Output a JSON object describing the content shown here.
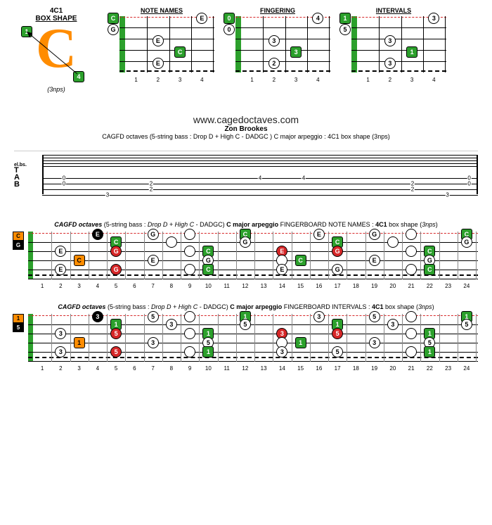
{
  "colors": {
    "green": "#2ca02c",
    "orange": "#ff8c00",
    "red": "#d62728",
    "black": "#000000",
    "white": "#ffffff",
    "grid": "#888888"
  },
  "top": {
    "box_title": "4C1",
    "box_sub": "BOX SHAPE",
    "big_letter": "C",
    "big_letter_color": "#ff8c00",
    "corner_tl": "1",
    "corner_br": "4",
    "nps_label": "(3nps)",
    "mini_charts": {
      "frets": 4,
      "strings": 5,
      "fret_labels": [
        "1",
        "2",
        "3",
        "4"
      ],
      "charts": [
        {
          "title": "NOTE NAMES",
          "open_notes": [
            {
              "string": 0,
              "label": "C",
              "style": "green-sq"
            },
            {
              "string": 1,
              "label": "G",
              "style": "circle"
            }
          ],
          "notes": [
            {
              "fret": 4,
              "string": 0,
              "label": "E",
              "style": "circle"
            },
            {
              "fret": 2,
              "string": 2,
              "label": "E",
              "style": "circle"
            },
            {
              "fret": 3,
              "string": 3,
              "label": "C",
              "style": "green-sq"
            },
            {
              "fret": 2,
              "string": 4,
              "label": "E",
              "style": "circle"
            }
          ]
        },
        {
          "title": "FINGERING",
          "open_notes": [
            {
              "string": 0,
              "label": "0",
              "style": "green-sq"
            },
            {
              "string": 1,
              "label": "0",
              "style": "circle"
            }
          ],
          "notes": [
            {
              "fret": 4,
              "string": 0,
              "label": "4",
              "style": "circle"
            },
            {
              "fret": 2,
              "string": 2,
              "label": "3",
              "style": "circle"
            },
            {
              "fret": 3,
              "string": 3,
              "label": "3",
              "style": "green-sq"
            },
            {
              "fret": 2,
              "string": 4,
              "label": "2",
              "style": "circle"
            }
          ]
        },
        {
          "title": "INTERVALS",
          "open_notes": [
            {
              "string": 0,
              "label": "1",
              "style": "green-sq"
            },
            {
              "string": 1,
              "label": "5",
              "style": "circle"
            }
          ],
          "notes": [
            {
              "fret": 4,
              "string": 0,
              "label": "3",
              "style": "circle"
            },
            {
              "fret": 2,
              "string": 2,
              "label": "3",
              "style": "circle"
            },
            {
              "fret": 3,
              "string": 3,
              "label": "1",
              "style": "green-sq"
            },
            {
              "fret": 2,
              "string": 4,
              "label": "3",
              "style": "circle"
            }
          ]
        }
      ]
    }
  },
  "mid": {
    "url": "www.cagedoctaves.com",
    "author": "Zon Brookes",
    "title": "CAGFD octaves (5-string bass : Drop D + High C - DADGC ) C major arpeggio : 4C1 box shape (3nps)",
    "tab": {
      "top_row": [
        "0",
        "",
        "",
        "",
        "4",
        "4",
        "",
        "",
        "",
        "0"
      ],
      "rows": [
        [
          "0",
          "",
          "2",
          "",
          "",
          "",
          "",
          "2",
          "",
          "0"
        ],
        [
          "",
          "",
          "2",
          "",
          "",
          "",
          "",
          "2",
          "",
          ""
        ],
        [
          "",
          "3",
          "",
          "",
          "",
          "",
          "",
          "",
          "3",
          ""
        ]
      ],
      "positions": [
        5,
        15,
        25,
        35,
        50,
        60,
        75,
        85,
        93,
        98
      ]
    }
  },
  "full_boards": {
    "frets": 24,
    "strings": 5,
    "string_y": [
      2,
      15,
      28,
      41,
      54,
      67
    ],
    "fret_labels": [
      "1",
      "2",
      "3",
      "4",
      "5",
      "6",
      "7",
      "8",
      "9",
      "10",
      "11",
      "12",
      "13",
      "14",
      "15",
      "16",
      "17",
      "18",
      "19",
      "20",
      "21",
      "22",
      "23",
      "24"
    ],
    "boards": [
      {
        "title_parts": [
          "CAGFD octaves",
          " (5-string bass : ",
          "Drop D + High C",
          " - DADGC) ",
          "C major arpeggio",
          " FINGERBOARD NOTE NAMES : ",
          "4C1",
          " box shape (",
          "3nps",
          ")"
        ],
        "title_styles": [
          "bi",
          "",
          "i",
          "",
          "b",
          "",
          "b",
          "",
          "i",
          ""
        ],
        "left_labels": [
          {
            "text": "C",
            "bg": "#ff8c00",
            "fg": "#000"
          },
          {
            "text": "G",
            "bg": "#000",
            "fg": "#fff"
          }
        ],
        "notes": [
          {
            "f": 4,
            "s": 0,
            "t": "E",
            "k": "black"
          },
          {
            "f": 5,
            "s": 1,
            "t": "C",
            "k": "green"
          },
          {
            "f": 7,
            "s": 0,
            "t": "G",
            "k": "cir"
          },
          {
            "f": 9,
            "s": 0,
            "t": "",
            "k": "cir"
          },
          {
            "f": 8,
            "s": 1,
            "t": "",
            "k": "cir"
          },
          {
            "f": 12,
            "s": 0,
            "t": "C",
            "k": "green"
          },
          {
            "f": 12,
            "s": 1,
            "t": "G",
            "k": "cir"
          },
          {
            "f": 16,
            "s": 0,
            "t": "E",
            "k": "cir"
          },
          {
            "f": 17,
            "s": 1,
            "t": "C",
            "k": "green"
          },
          {
            "f": 19,
            "s": 0,
            "t": "G",
            "k": "cir"
          },
          {
            "f": 20,
            "s": 1,
            "t": "",
            "k": "cir"
          },
          {
            "f": 21,
            "s": 0,
            "t": "",
            "k": "cir"
          },
          {
            "f": 24,
            "s": 0,
            "t": "C",
            "k": "green"
          },
          {
            "f": 24,
            "s": 1,
            "t": "G",
            "k": "cir"
          },
          {
            "f": 2,
            "s": 2,
            "t": "E",
            "k": "cir"
          },
          {
            "f": 5,
            "s": 2,
            "t": "G",
            "k": "red"
          },
          {
            "f": 9,
            "s": 2,
            "t": "",
            "k": "cir"
          },
          {
            "f": 10,
            "s": 2,
            "t": "C",
            "k": "green"
          },
          {
            "f": 14,
            "s": 2,
            "t": "E",
            "k": "red"
          },
          {
            "f": 17,
            "s": 2,
            "t": "G",
            "k": "red"
          },
          {
            "f": 22,
            "s": 2,
            "t": "C",
            "k": "green"
          },
          {
            "f": 21,
            "s": 2,
            "t": "",
            "k": "cir"
          },
          {
            "f": 3,
            "s": 3,
            "t": "C",
            "k": "orange"
          },
          {
            "f": 7,
            "s": 3,
            "t": "E",
            "k": "cir"
          },
          {
            "f": 10,
            "s": 3,
            "t": "G",
            "k": "cir"
          },
          {
            "f": 14,
            "s": 3,
            "t": "",
            "k": "cir"
          },
          {
            "f": 15,
            "s": 3,
            "t": "C",
            "k": "green"
          },
          {
            "f": 19,
            "s": 3,
            "t": "E",
            "k": "cir"
          },
          {
            "f": 22,
            "s": 3,
            "t": "G",
            "k": "cir"
          },
          {
            "f": 2,
            "s": 4,
            "t": "E",
            "k": "cir"
          },
          {
            "f": 5,
            "s": 4,
            "t": "G",
            "k": "red"
          },
          {
            "f": 10,
            "s": 4,
            "t": "C",
            "k": "green"
          },
          {
            "f": 9,
            "s": 4,
            "t": "",
            "k": "cir"
          },
          {
            "f": 14,
            "s": 4,
            "t": "E",
            "k": "cir"
          },
          {
            "f": 17,
            "s": 4,
            "t": "G",
            "k": "cir"
          },
          {
            "f": 22,
            "s": 4,
            "t": "C",
            "k": "green"
          },
          {
            "f": 21,
            "s": 4,
            "t": "",
            "k": "cir"
          }
        ]
      },
      {
        "title_parts": [
          "CAGFD octaves",
          " (5-string bass : ",
          "Drop D + High C",
          " - DADGC) ",
          "C major arpeggio",
          " FINGERBOARD INTERVALS : ",
          "4C1",
          " box shape (",
          "3nps",
          ")"
        ],
        "title_styles": [
          "bi",
          "",
          "i",
          "",
          "b",
          "",
          "b",
          "",
          "i",
          ""
        ],
        "left_labels": [
          {
            "text": "1",
            "bg": "#ff8c00",
            "fg": "#000"
          },
          {
            "text": "5",
            "bg": "#000",
            "fg": "#fff"
          }
        ],
        "notes": [
          {
            "f": 4,
            "s": 0,
            "t": "3",
            "k": "black"
          },
          {
            "f": 5,
            "s": 1,
            "t": "1",
            "k": "green"
          },
          {
            "f": 7,
            "s": 0,
            "t": "5",
            "k": "cir"
          },
          {
            "f": 9,
            "s": 0,
            "t": "",
            "k": "cir"
          },
          {
            "f": 8,
            "s": 1,
            "t": "3",
            "k": "cir"
          },
          {
            "f": 12,
            "s": 0,
            "t": "1",
            "k": "green"
          },
          {
            "f": 12,
            "s": 1,
            "t": "5",
            "k": "cir"
          },
          {
            "f": 16,
            "s": 0,
            "t": "3",
            "k": "cir"
          },
          {
            "f": 17,
            "s": 1,
            "t": "1",
            "k": "green"
          },
          {
            "f": 19,
            "s": 0,
            "t": "5",
            "k": "cir"
          },
          {
            "f": 20,
            "s": 1,
            "t": "3",
            "k": "cir"
          },
          {
            "f": 21,
            "s": 0,
            "t": "",
            "k": "cir"
          },
          {
            "f": 24,
            "s": 0,
            "t": "1",
            "k": "green"
          },
          {
            "f": 24,
            "s": 1,
            "t": "5",
            "k": "cir"
          },
          {
            "f": 2,
            "s": 2,
            "t": "3",
            "k": "cir"
          },
          {
            "f": 5,
            "s": 2,
            "t": "5",
            "k": "red"
          },
          {
            "f": 9,
            "s": 2,
            "t": "",
            "k": "cir"
          },
          {
            "f": 10,
            "s": 2,
            "t": "1",
            "k": "green"
          },
          {
            "f": 14,
            "s": 2,
            "t": "3",
            "k": "red"
          },
          {
            "f": 17,
            "s": 2,
            "t": "5",
            "k": "red"
          },
          {
            "f": 22,
            "s": 2,
            "t": "1",
            "k": "green"
          },
          {
            "f": 21,
            "s": 2,
            "t": "",
            "k": "cir"
          },
          {
            "f": 3,
            "s": 3,
            "t": "1",
            "k": "orange"
          },
          {
            "f": 7,
            "s": 3,
            "t": "3",
            "k": "cir"
          },
          {
            "f": 10,
            "s": 3,
            "t": "5",
            "k": "cir"
          },
          {
            "f": 14,
            "s": 3,
            "t": "",
            "k": "cir"
          },
          {
            "f": 15,
            "s": 3,
            "t": "1",
            "k": "green"
          },
          {
            "f": 19,
            "s": 3,
            "t": "3",
            "k": "cir"
          },
          {
            "f": 22,
            "s": 3,
            "t": "5",
            "k": "cir"
          },
          {
            "f": 2,
            "s": 4,
            "t": "3",
            "k": "cir"
          },
          {
            "f": 5,
            "s": 4,
            "t": "5",
            "k": "red"
          },
          {
            "f": 10,
            "s": 4,
            "t": "1",
            "k": "green"
          },
          {
            "f": 9,
            "s": 4,
            "t": "",
            "k": "cir"
          },
          {
            "f": 14,
            "s": 4,
            "t": "3",
            "k": "cir"
          },
          {
            "f": 17,
            "s": 4,
            "t": "5",
            "k": "cir"
          },
          {
            "f": 22,
            "s": 4,
            "t": "1",
            "k": "green"
          },
          {
            "f": 21,
            "s": 4,
            "t": "",
            "k": "cir"
          }
        ]
      }
    ]
  }
}
